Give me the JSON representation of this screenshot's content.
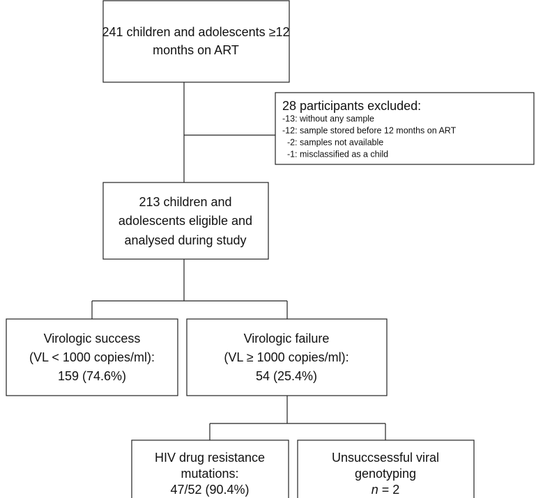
{
  "nodes": [
    {
      "lines": [
        "241 children and adolescents ≥12",
        "months on ART"
      ]
    },
    {
      "title": "28 participants excluded:",
      "lines": [
        "-13: without any sample",
        "-12: sample stored before 12 months on ART",
        "  -2: samples not available",
        "  -1: misclassified as a child"
      ]
    },
    {
      "lines": [
        "213 children and",
        "adolescents eligible and",
        "analysed during study"
      ]
    },
    {
      "lines": [
        "Virologic success",
        "(VL < 1000 copies/ml):",
        "159 (74.6%)"
      ]
    },
    {
      "lines": [
        "Virologic failure",
        "(VL ≥ 1000 copies/ml):",
        "54 (25.4%)"
      ]
    },
    {
      "lines": [
        "HIV drug resistance",
        "mutations:",
        "47/52 (90.4%)"
      ]
    },
    {
      "lines": [
        "Unsuccsessful viral",
        "genotyping"
      ],
      "count_symbol": "n",
      "count_value": " = 2"
    }
  ]
}
